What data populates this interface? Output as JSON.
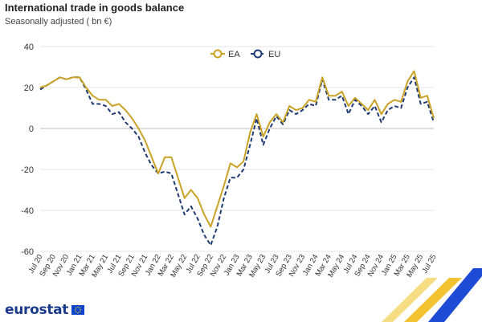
{
  "header": {
    "title": "International trade in goods balance",
    "subtitle": "Seasonally adjusted ( bn €)"
  },
  "brand": {
    "name": "eurostat"
  },
  "colors": {
    "ea": "#c9a226",
    "eu": "#1f3b73",
    "grid": "#e6e6e6",
    "zero": "#bdbdbd"
  },
  "chart_data": {
    "type": "line",
    "title": "International trade in goods balance",
    "subtitle": "Seasonally adjusted ( bn €)",
    "xlabel": "",
    "ylabel": "",
    "ylim": [
      -60,
      40
    ],
    "yticks": [
      -60,
      -40,
      -20,
      0,
      20,
      40
    ],
    "grid": true,
    "legend_position": "top-right",
    "x": [
      "Jul 20",
      "Aug 20",
      "Sep 20",
      "Oct 20",
      "Nov 20",
      "Dec 20",
      "Jan 21",
      "Feb 21",
      "Mar 21",
      "Apr 21",
      "May 21",
      "Jun 21",
      "Jul 21",
      "Aug 21",
      "Sep 21",
      "Oct 21",
      "Nov 21",
      "Dec 21",
      "Jan 22",
      "Feb 22",
      "Mar 22",
      "Apr 22",
      "May 22",
      "Jun 22",
      "Jul 22",
      "Aug 22",
      "Sep 22",
      "Oct 22",
      "Nov 22",
      "Dec 22",
      "Jan 23",
      "Feb 23",
      "Mar 23",
      "Apr 23",
      "May 23",
      "Jun 23",
      "Jul 23",
      "Aug 23",
      "Sep 23",
      "Oct 23",
      "Nov 23",
      "Dec 23",
      "Jan 24",
      "Feb 24",
      "Mar 24",
      "Apr 24",
      "May 24",
      "Jun 24",
      "Jul 24",
      "Aug 24",
      "Sep 24",
      "Oct 24",
      "Nov 24",
      "Dec 24",
      "Jan 25",
      "Feb 25",
      "Mar 25",
      "Apr 25",
      "May 25",
      "Jun 25",
      "Jul 25"
    ],
    "xtick_labels": [
      "Jul 20",
      "Sep 20",
      "Nov 20",
      "Jan 21",
      "Mar 21",
      "May 21",
      "Jul 21",
      "Sep 21",
      "Nov 21",
      "Jan 22",
      "Mar 22",
      "May 22",
      "Jul 22",
      "Sep 22",
      "Nov 22",
      "Jan 23",
      "Mar 23",
      "May 23",
      "Jul 23",
      "Sep 23",
      "Nov 23",
      "Jan 24",
      "Mar 24",
      "May 24",
      "Jul 24",
      "Sep 24",
      "Nov 24",
      "Jan 25",
      "Mar 25",
      "May 25",
      "Jul 25"
    ],
    "series": [
      {
        "name": "EA",
        "color": "#c9a226",
        "style": "solid",
        "values": [
          20,
          21,
          23,
          25,
          24,
          25,
          25,
          20,
          16,
          14,
          14,
          11,
          12,
          9,
          5,
          0,
          -6,
          -14,
          -22,
          -14,
          -14,
          -24,
          -34,
          -30,
          -34,
          -42,
          -48,
          -38,
          -28,
          -17,
          -19,
          -16,
          -2,
          7,
          -4,
          3,
          7,
          3,
          11,
          9,
          10,
          14,
          13,
          25,
          16,
          16,
          18,
          11,
          15,
          12,
          9,
          14,
          7,
          12,
          14,
          13,
          23,
          28,
          15,
          16,
          5
        ]
      },
      {
        "name": "EU",
        "color": "#1f3b73",
        "style": "dashed",
        "values": [
          19,
          21,
          23,
          25,
          24,
          25,
          25,
          19,
          12,
          12,
          11,
          7,
          8,
          3,
          0,
          -4,
          -12,
          -18,
          -22,
          -21,
          -22,
          -32,
          -42,
          -38,
          -44,
          -52,
          -57,
          -48,
          -34,
          -24,
          -24,
          -20,
          -8,
          5,
          -8,
          0,
          6,
          2,
          9,
          7,
          9,
          12,
          11,
          24,
          14,
          14,
          16,
          7,
          14,
          11,
          7,
          11,
          3,
          9,
          11,
          10,
          20,
          25,
          12,
          13,
          3
        ]
      }
    ]
  }
}
